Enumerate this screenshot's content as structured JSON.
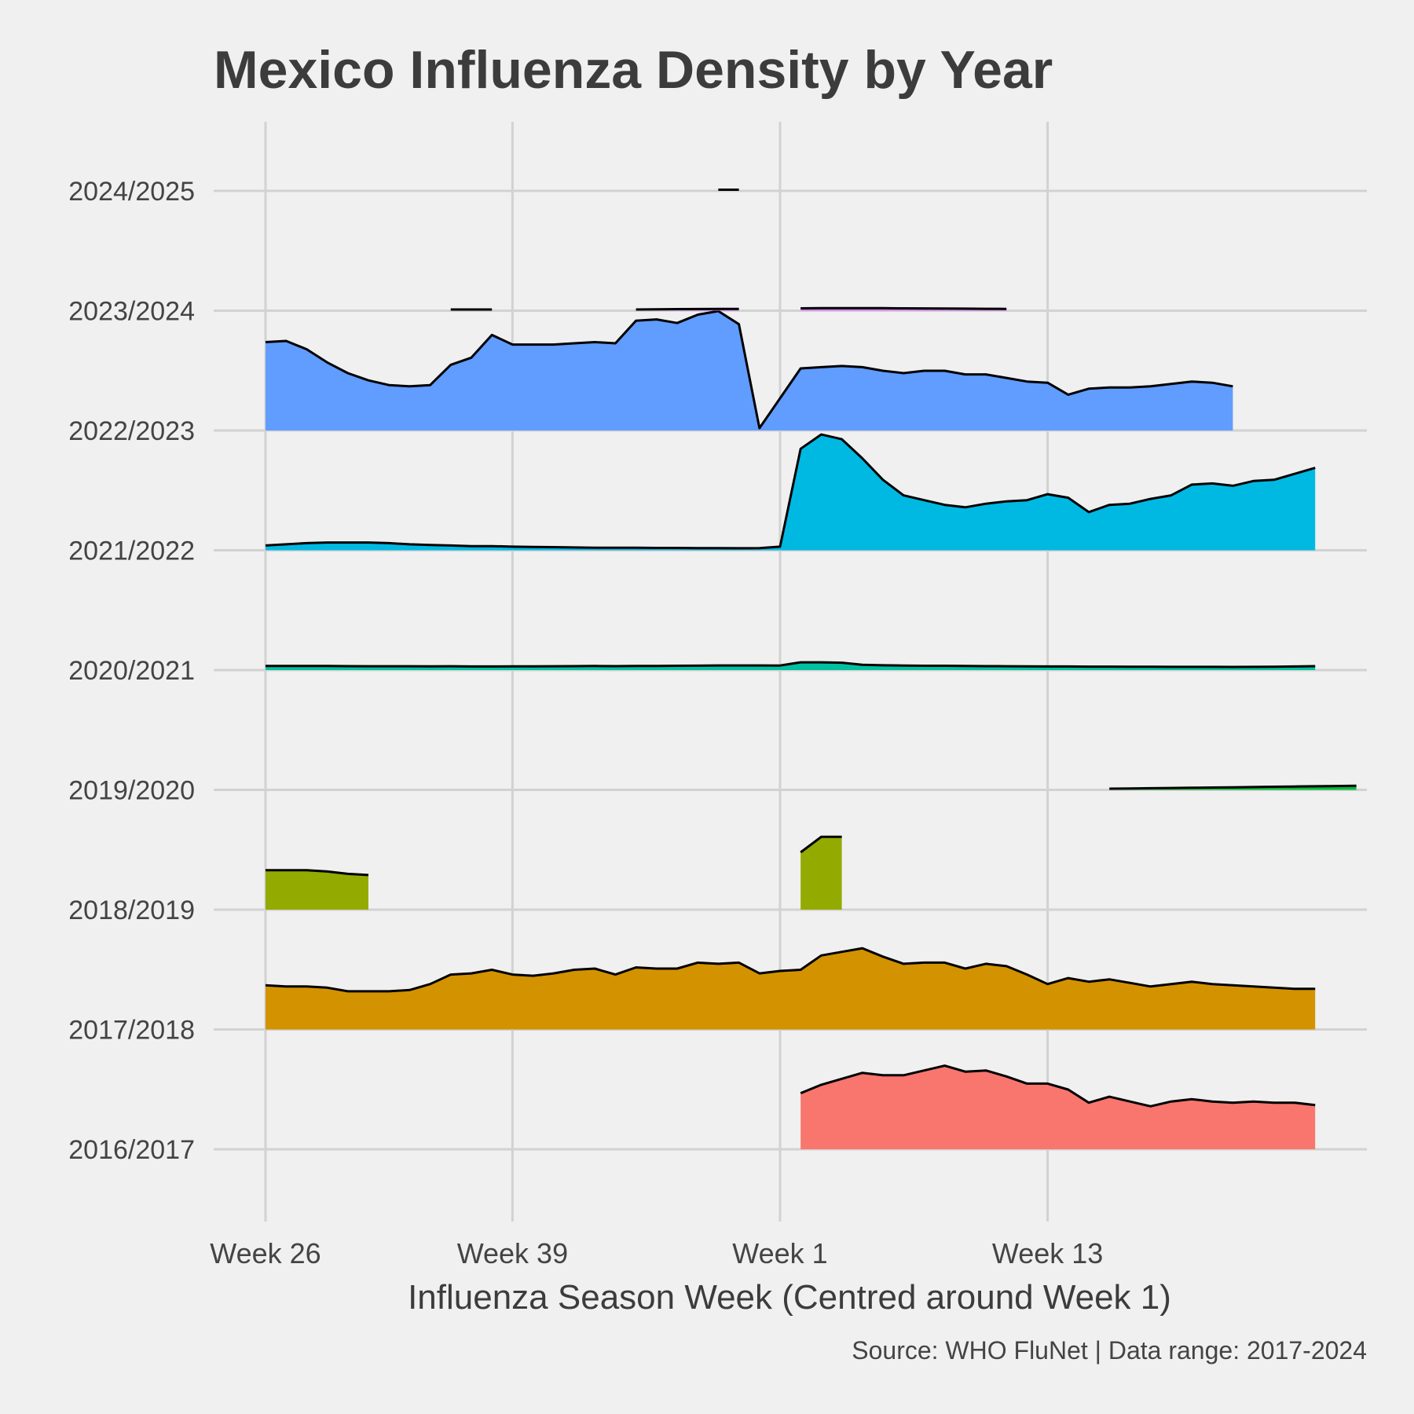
{
  "chart_data": {
    "type": "area",
    "subtype": "ridgeline",
    "title": "Mexico Influenza Density by Year",
    "xlabel": "Influenza Season Week (Centred around Week 1)",
    "ylabel": "",
    "caption": "Source: WHO FluNet | Data range: 2017-2024",
    "x_ticks": [
      {
        "label": "Week 26",
        "pos": 0
      },
      {
        "label": "Week 39",
        "pos": 12
      },
      {
        "label": "Week 1",
        "pos": 25
      },
      {
        "label": "Week 13",
        "pos": 38
      }
    ],
    "xlim": [
      -2.5,
      53.5
    ],
    "grid": true,
    "legend": "none",
    "rows": [
      "2016/2017",
      "2017/2018",
      "2018/2019",
      "2019/2020",
      "2020/2021",
      "2021/2022",
      "2022/2023",
      "2023/2024",
      "2024/2025"
    ],
    "series": [
      {
        "season": "2016/2017",
        "color": "#F8766D",
        "fill": true,
        "segments": [
          {
            "start": 26,
            "values": [
              0.47,
              0.54,
              0.59,
              0.64,
              0.62,
              0.62,
              0.66,
              0.7,
              0.65,
              0.66,
              0.61,
              0.55,
              0.55,
              0.5,
              0.39,
              0.44,
              0.4,
              0.36,
              0.4,
              0.42,
              0.4,
              0.39,
              0.4,
              0.39,
              0.39,
              0.37
            ]
          }
        ]
      },
      {
        "season": "2017/2018",
        "color": "#D39200",
        "fill": true,
        "segments": [
          {
            "start": 0,
            "values": [
              0.37,
              0.36,
              0.36,
              0.35,
              0.32,
              0.32,
              0.32,
              0.33,
              0.38,
              0.46,
              0.47,
              0.5,
              0.46,
              0.45,
              0.47,
              0.5,
              0.51,
              0.46,
              0.52,
              0.51,
              0.51,
              0.56,
              0.55,
              0.56,
              0.47,
              0.49,
              0.5,
              0.62,
              0.65,
              0.68,
              0.61,
              0.55,
              0.56,
              0.56,
              0.51,
              0.55,
              0.53,
              0.46,
              0.38,
              0.43,
              0.4,
              0.42,
              0.39,
              0.36,
              0.38,
              0.4,
              0.38,
              0.37,
              0.36,
              0.35,
              0.34,
              0.34
            ]
          }
        ]
      },
      {
        "season": "2018/2019",
        "color": "#93AA00",
        "fill": true,
        "segments": [
          {
            "start": 0,
            "values": [
              0.33,
              0.33,
              0.33,
              0.32,
              0.3,
              0.29
            ]
          },
          {
            "start": 26,
            "values": [
              0.48,
              0.61,
              0.61
            ]
          }
        ]
      },
      {
        "season": "2019/2020",
        "color": "#00BA38",
        "fill": true,
        "segments": [
          {
            "start": 41,
            "values": [
              0.01,
              0.012,
              0.014,
              0.016,
              0.018,
              0.02,
              0.022,
              0.024,
              0.026,
              0.028,
              0.03,
              0.032,
              0.034
            ]
          }
        ]
      },
      {
        "season": "2020/2021",
        "color": "#00C19F",
        "fill": true,
        "segments": [
          {
            "start": 0,
            "values": [
              0.035,
              0.035,
              0.035,
              0.035,
              0.033,
              0.032,
              0.032,
              0.032,
              0.031,
              0.032,
              0.03,
              0.03,
              0.031,
              0.031,
              0.032,
              0.033,
              0.034,
              0.033,
              0.034,
              0.035,
              0.036,
              0.037,
              0.039,
              0.039,
              0.039,
              0.038,
              0.065,
              0.065,
              0.062,
              0.045,
              0.04,
              0.038,
              0.036,
              0.036,
              0.034,
              0.033,
              0.032,
              0.031,
              0.03,
              0.03,
              0.029,
              0.029,
              0.028,
              0.028,
              0.027,
              0.027,
              0.027,
              0.026,
              0.027,
              0.028,
              0.03,
              0.033
            ]
          }
        ]
      },
      {
        "season": "2021/2022",
        "color": "#00B9E3",
        "fill": true,
        "segments": [
          {
            "start": 0,
            "values": [
              0.04,
              0.05,
              0.06,
              0.065,
              0.065,
              0.065,
              0.06,
              0.05,
              0.045,
              0.04,
              0.035,
              0.035,
              0.03,
              0.028,
              0.026,
              0.024,
              0.022,
              0.022,
              0.022,
              0.02,
              0.02,
              0.018,
              0.018,
              0.017,
              0.018,
              0.03,
              0.85,
              0.97,
              0.93,
              0.77,
              0.59,
              0.46,
              0.42,
              0.38,
              0.36,
              0.39,
              0.41,
              0.42,
              0.47,
              0.44,
              0.32,
              0.38,
              0.39,
              0.43,
              0.46,
              0.55,
              0.56,
              0.54,
              0.58,
              0.59,
              0.64,
              0.69
            ]
          }
        ]
      },
      {
        "season": "2022/2023",
        "color": "#619CFF",
        "fill": true,
        "segments": [
          {
            "start": 0,
            "values": [
              0.74,
              0.75,
              0.68,
              0.57,
              0.48,
              0.42,
              0.38,
              0.37,
              0.38,
              0.55,
              0.61,
              0.8,
              0.72,
              0.72,
              0.72,
              0.73,
              0.74,
              0.73,
              0.92,
              0.93,
              0.9,
              0.97,
              1.0,
              0.89,
              0.02,
              0.27,
              0.52,
              0.53,
              0.54,
              0.53,
              0.5,
              0.48,
              0.5,
              0.5,
              0.47,
              0.47,
              0.44,
              0.41,
              0.4,
              0.3,
              0.35,
              0.36,
              0.36,
              0.37,
              0.39,
              0.41,
              0.4,
              0.37
            ]
          }
        ]
      },
      {
        "season": "2023/2024",
        "color": "#DB72FB",
        "fill": true,
        "segments": [
          {
            "start": 9,
            "values": [
              0.01,
              0.01,
              0.01
            ]
          },
          {
            "start": 18,
            "values": [
              0.01,
              0.012,
              0.013,
              0.014,
              0.015,
              0.015
            ]
          },
          {
            "start": 26,
            "values": [
              0.02,
              0.021,
              0.022,
              0.022,
              0.021,
              0.02,
              0.019,
              0.018,
              0.017,
              0.016,
              0.015
            ]
          }
        ]
      },
      {
        "season": "2024/2025",
        "color": "#FF61C3",
        "fill": true,
        "segments": [
          {
            "start": 22,
            "values": [
              0.01,
              0.01
            ]
          }
        ]
      }
    ]
  }
}
